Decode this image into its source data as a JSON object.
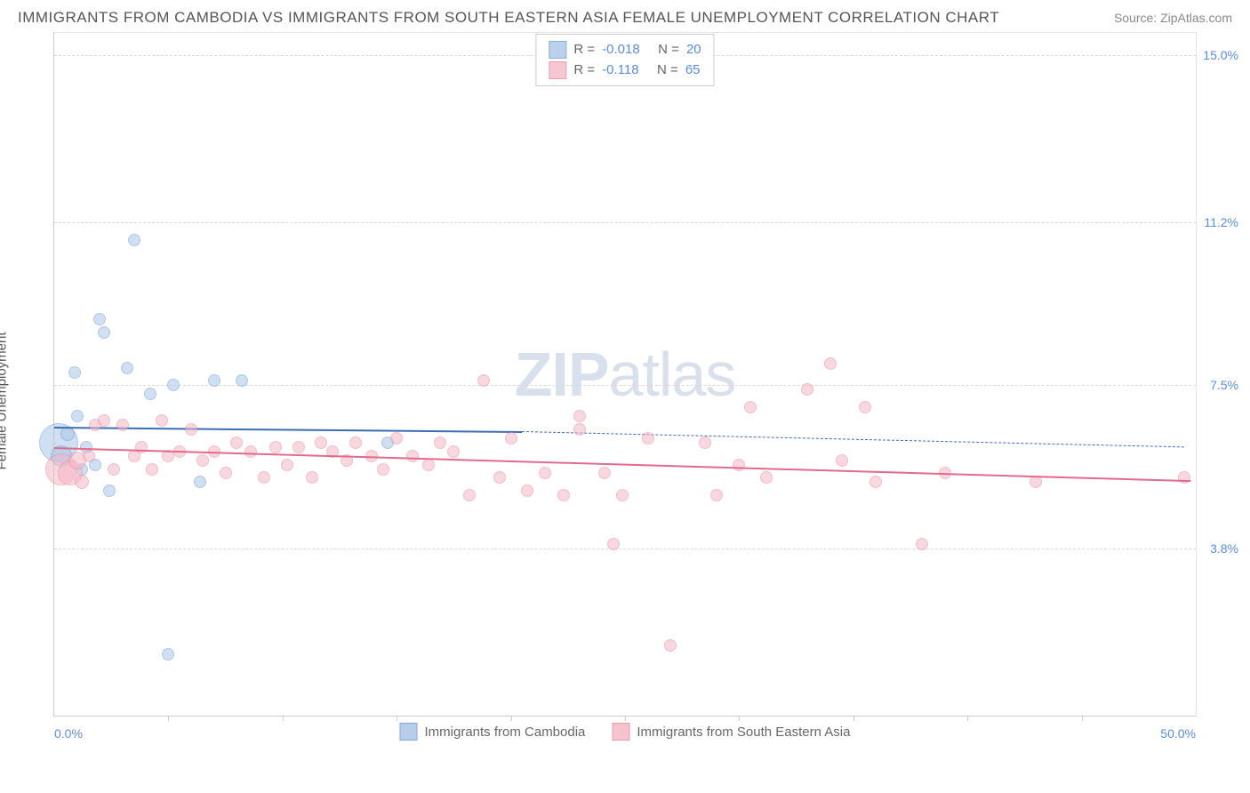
{
  "title": "IMMIGRANTS FROM CAMBODIA VS IMMIGRANTS FROM SOUTH EASTERN ASIA FEMALE UNEMPLOYMENT CORRELATION CHART",
  "source_prefix": "Source: ",
  "source_name": "ZipAtlas.com",
  "watermark_zip": "ZIP",
  "watermark_atlas": "atlas",
  "ylabel": "Female Unemployment",
  "chart": {
    "type": "scatter",
    "xlim": [
      0,
      50
    ],
    "ylim": [
      0,
      15.5
    ],
    "x_axis_label_left": "0.0%",
    "x_axis_label_right": "50.0%",
    "yticks": [
      {
        "v": 15.0,
        "label": "15.0%"
      },
      {
        "v": 11.2,
        "label": "11.2%"
      },
      {
        "v": 7.5,
        "label": "7.5%"
      },
      {
        "v": 3.8,
        "label": "3.8%"
      }
    ],
    "xticks_minor": [
      5,
      10,
      15,
      20,
      25,
      30,
      35,
      40,
      45
    ],
    "background_color": "#ffffff",
    "grid_color": "#d8d8d8",
    "axis_color": "#cccccc",
    "text_color": "#555555",
    "value_color": "#5b8dd6",
    "series": [
      {
        "name": "Immigrants from Cambodia",
        "fill": "#aac6e8",
        "fill_opacity": 0.55,
        "stroke": "#6f9bd1",
        "line_color": "#3b6db5",
        "R": "-0.018",
        "N": "20",
        "trend": {
          "x1": 0,
          "y1": 6.55,
          "x2": 20.5,
          "y2": 6.45,
          "dash_to_x": 49.5,
          "dash_to_y": 6.1
        },
        "points": [
          {
            "x": 0.2,
            "y": 6.2,
            "r": 22
          },
          {
            "x": 0.3,
            "y": 5.9,
            "r": 12
          },
          {
            "x": 0.6,
            "y": 6.4,
            "r": 8
          },
          {
            "x": 0.9,
            "y": 7.8,
            "r": 7
          },
          {
            "x": 1.2,
            "y": 5.6,
            "r": 7
          },
          {
            "x": 1.4,
            "y": 6.1,
            "r": 7
          },
          {
            "x": 1.8,
            "y": 5.7,
            "r": 7
          },
          {
            "x": 2.0,
            "y": 9.0,
            "r": 7
          },
          {
            "x": 2.2,
            "y": 8.7,
            "r": 7
          },
          {
            "x": 2.4,
            "y": 5.1,
            "r": 7
          },
          {
            "x": 3.2,
            "y": 7.9,
            "r": 7
          },
          {
            "x": 3.5,
            "y": 10.8,
            "r": 7
          },
          {
            "x": 4.2,
            "y": 7.3,
            "r": 7
          },
          {
            "x": 5.0,
            "y": 1.4,
            "r": 7
          },
          {
            "x": 5.2,
            "y": 7.5,
            "r": 7
          },
          {
            "x": 6.4,
            "y": 5.3,
            "r": 7
          },
          {
            "x": 7.0,
            "y": 7.6,
            "r": 7
          },
          {
            "x": 8.2,
            "y": 7.6,
            "r": 7
          },
          {
            "x": 14.6,
            "y": 6.2,
            "r": 7
          },
          {
            "x": 1.0,
            "y": 6.8,
            "r": 7
          }
        ]
      },
      {
        "name": "Immigrants from South Eastern Asia",
        "fill": "#f4b8c6",
        "fill_opacity": 0.55,
        "stroke": "#e48aa0",
        "line_color": "#e26a8c",
        "R": "-0.118",
        "N": "65",
        "trend": {
          "x1": 0,
          "y1": 6.1,
          "x2": 49.8,
          "y2": 5.35
        },
        "points": [
          {
            "x": 0.3,
            "y": 5.6,
            "r": 18
          },
          {
            "x": 0.7,
            "y": 5.5,
            "r": 14
          },
          {
            "x": 1.0,
            "y": 5.8,
            "r": 10
          },
          {
            "x": 1.2,
            "y": 5.3,
            "r": 8
          },
          {
            "x": 1.5,
            "y": 5.9,
            "r": 7
          },
          {
            "x": 1.8,
            "y": 6.6,
            "r": 7
          },
          {
            "x": 2.2,
            "y": 6.7,
            "r": 7
          },
          {
            "x": 2.6,
            "y": 5.6,
            "r": 7
          },
          {
            "x": 3.0,
            "y": 6.6,
            "r": 7
          },
          {
            "x": 3.5,
            "y": 5.9,
            "r": 7
          },
          {
            "x": 3.8,
            "y": 6.1,
            "r": 7
          },
          {
            "x": 4.3,
            "y": 5.6,
            "r": 7
          },
          {
            "x": 4.7,
            "y": 6.7,
            "r": 7
          },
          {
            "x": 5.0,
            "y": 5.9,
            "r": 7
          },
          {
            "x": 5.5,
            "y": 6.0,
            "r": 7
          },
          {
            "x": 6.0,
            "y": 6.5,
            "r": 7
          },
          {
            "x": 6.5,
            "y": 5.8,
            "r": 7
          },
          {
            "x": 7.0,
            "y": 6.0,
            "r": 7
          },
          {
            "x": 7.5,
            "y": 5.5,
            "r": 7
          },
          {
            "x": 8.0,
            "y": 6.2,
            "r": 7
          },
          {
            "x": 8.6,
            "y": 6.0,
            "r": 7
          },
          {
            "x": 9.2,
            "y": 5.4,
            "r": 7
          },
          {
            "x": 9.7,
            "y": 6.1,
            "r": 7
          },
          {
            "x": 10.2,
            "y": 5.7,
            "r": 7
          },
          {
            "x": 10.7,
            "y": 6.1,
            "r": 7
          },
          {
            "x": 11.3,
            "y": 5.4,
            "r": 7
          },
          {
            "x": 11.7,
            "y": 6.2,
            "r": 7
          },
          {
            "x": 12.2,
            "y": 6.0,
            "r": 7
          },
          {
            "x": 12.8,
            "y": 5.8,
            "r": 7
          },
          {
            "x": 13.2,
            "y": 6.2,
            "r": 7
          },
          {
            "x": 13.9,
            "y": 5.9,
            "r": 7
          },
          {
            "x": 14.4,
            "y": 5.6,
            "r": 7
          },
          {
            "x": 15.0,
            "y": 6.3,
            "r": 7
          },
          {
            "x": 15.7,
            "y": 5.9,
            "r": 7
          },
          {
            "x": 16.4,
            "y": 5.7,
            "r": 7
          },
          {
            "x": 16.9,
            "y": 6.2,
            "r": 7
          },
          {
            "x": 17.5,
            "y": 6.0,
            "r": 7
          },
          {
            "x": 18.2,
            "y": 5.0,
            "r": 7
          },
          {
            "x": 18.8,
            "y": 7.6,
            "r": 7
          },
          {
            "x": 19.5,
            "y": 5.4,
            "r": 7
          },
          {
            "x": 20.0,
            "y": 6.3,
            "r": 7
          },
          {
            "x": 20.7,
            "y": 5.1,
            "r": 7
          },
          {
            "x": 21.5,
            "y": 5.5,
            "r": 7
          },
          {
            "x": 22.3,
            "y": 5.0,
            "r": 7
          },
          {
            "x": 23.0,
            "y": 6.8,
            "r": 7
          },
          {
            "x": 23.0,
            "y": 6.5,
            "r": 7
          },
          {
            "x": 24.1,
            "y": 5.5,
            "r": 7
          },
          {
            "x": 24.9,
            "y": 5.0,
            "r": 7
          },
          {
            "x": 24.5,
            "y": 3.9,
            "r": 7
          },
          {
            "x": 26.0,
            "y": 6.3,
            "r": 7
          },
          {
            "x": 27.0,
            "y": 1.6,
            "r": 7
          },
          {
            "x": 28.5,
            "y": 6.2,
            "r": 7
          },
          {
            "x": 29.0,
            "y": 5.0,
            "r": 7
          },
          {
            "x": 30.0,
            "y": 5.7,
            "r": 7
          },
          {
            "x": 30.5,
            "y": 7.0,
            "r": 7
          },
          {
            "x": 31.2,
            "y": 5.4,
            "r": 7
          },
          {
            "x": 33.0,
            "y": 7.4,
            "r": 7
          },
          {
            "x": 34.0,
            "y": 8.0,
            "r": 7
          },
          {
            "x": 34.5,
            "y": 5.8,
            "r": 7
          },
          {
            "x": 35.5,
            "y": 7.0,
            "r": 7
          },
          {
            "x": 36.0,
            "y": 5.3,
            "r": 7
          },
          {
            "x": 38.0,
            "y": 3.9,
            "r": 7
          },
          {
            "x": 39.0,
            "y": 5.5,
            "r": 7
          },
          {
            "x": 43.0,
            "y": 5.3,
            "r": 7
          },
          {
            "x": 49.5,
            "y": 5.4,
            "r": 7
          }
        ]
      }
    ],
    "legend_series_labels": [
      "Immigrants from Cambodia",
      "Immigrants from South Eastern Asia"
    ]
  }
}
